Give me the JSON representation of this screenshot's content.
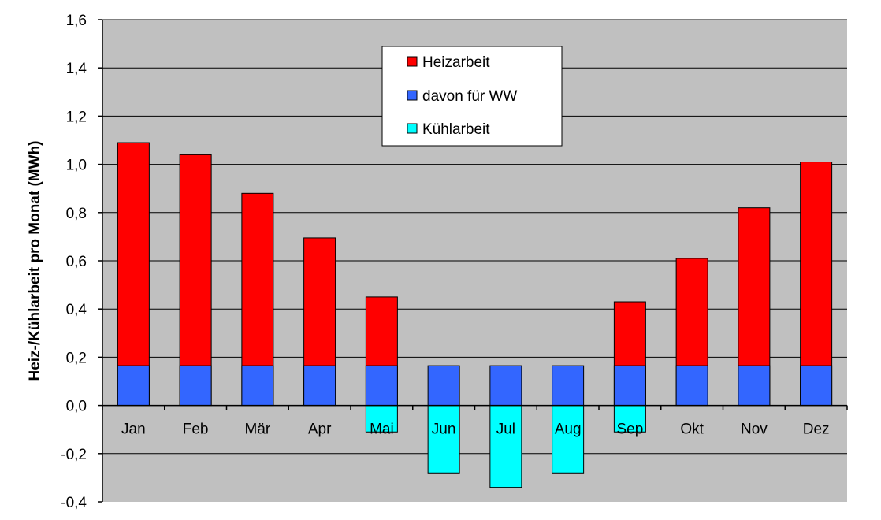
{
  "chart_data": {
    "type": "bar",
    "ylabel": "Heiz-/Kühlarbeit pro Monat (MWh)",
    "xlabel": "",
    "ylim": [
      -0.4,
      1.6
    ],
    "y_ticks": [
      "1,6",
      "1,4",
      "1,2",
      "1,0",
      "0,8",
      "0,6",
      "0,4",
      "0,2",
      "0,0",
      "-0,2",
      "-0,4"
    ],
    "y_tick_values": [
      1.6,
      1.4,
      1.2,
      1.0,
      0.8,
      0.6,
      0.4,
      0.2,
      0.0,
      -0.2,
      -0.4
    ],
    "grid": true,
    "legend_position": "top-center",
    "categories": [
      "Jan",
      "Feb",
      "Mär",
      "Apr",
      "Mai",
      "Jun",
      "Jul",
      "Aug",
      "Sep",
      "Okt",
      "Nov",
      "Dez"
    ],
    "series": [
      {
        "name": "Heizarbeit",
        "color": "#ff0000",
        "values": [
          1.09,
          1.04,
          0.88,
          0.695,
          0.45,
          0.0,
          0.0,
          0.0,
          0.43,
          0.61,
          0.82,
          1.01
        ]
      },
      {
        "name": "davon für WW",
        "color": "#3366ff",
        "values": [
          0.165,
          0.165,
          0.165,
          0.165,
          0.165,
          0.165,
          0.165,
          0.165,
          0.165,
          0.165,
          0.165,
          0.165
        ]
      },
      {
        "name": "Kühlarbeit",
        "color": "#00ffff",
        "values": [
          0.0,
          0.0,
          0.0,
          0.0,
          -0.11,
          -0.28,
          -0.34,
          -0.28,
          -0.11,
          0.0,
          0.0,
          0.0
        ]
      }
    ]
  }
}
